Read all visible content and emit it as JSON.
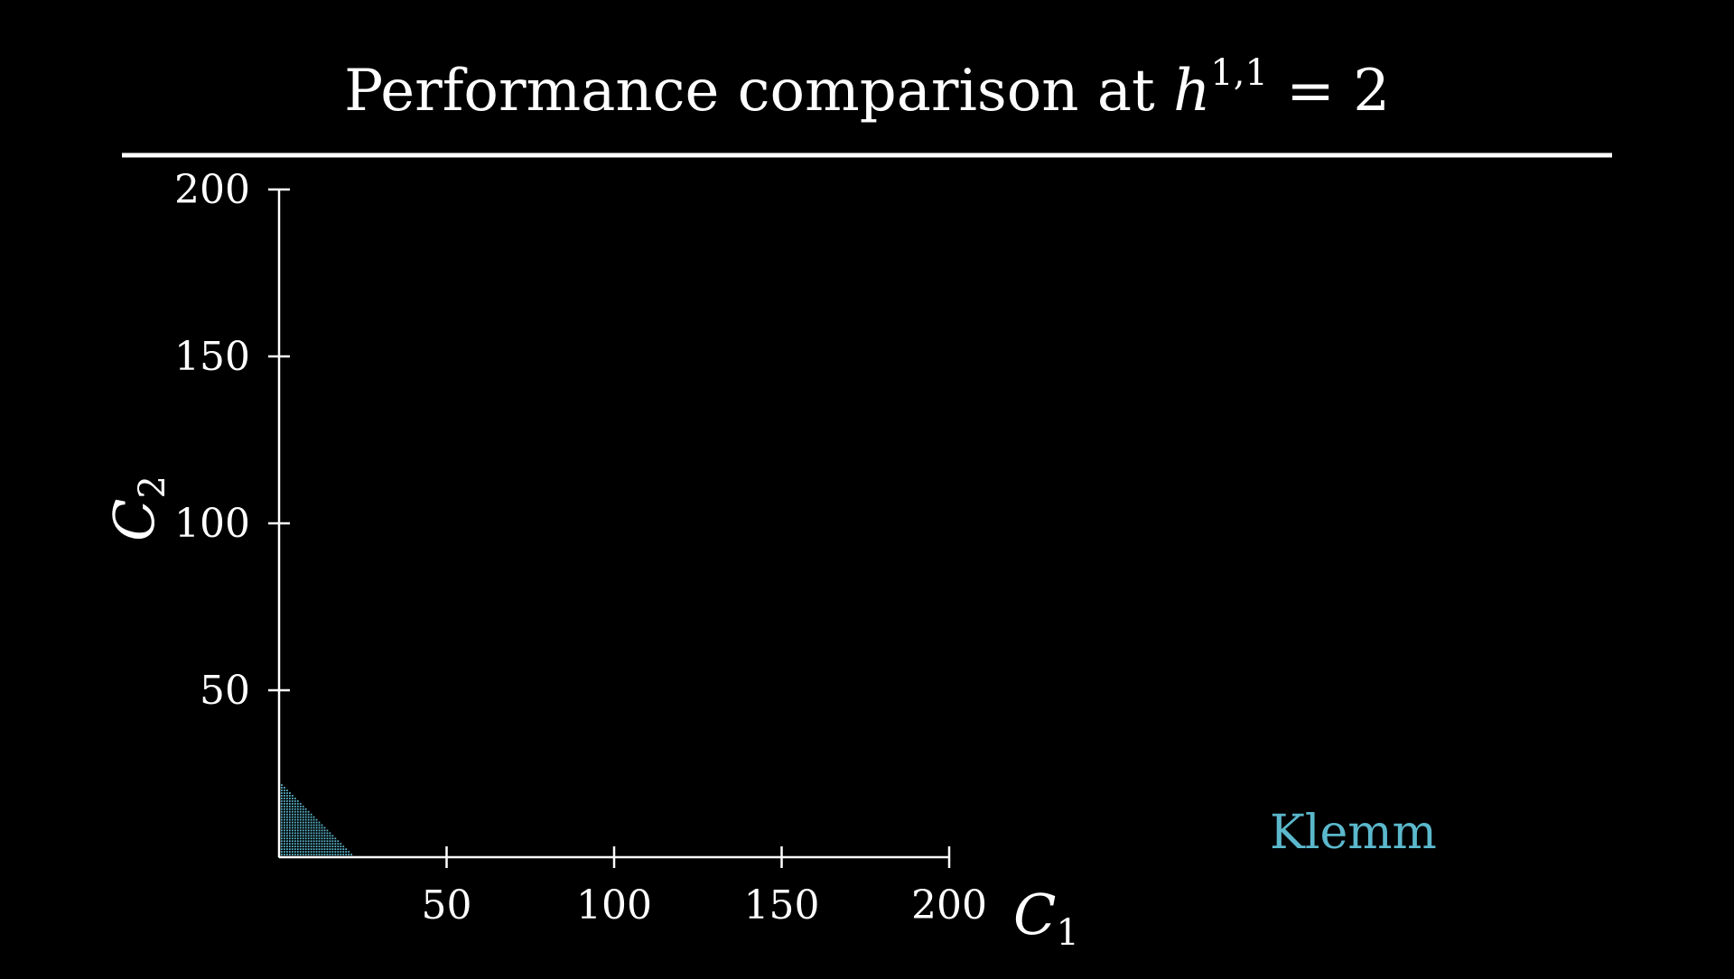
{
  "title": {
    "prefix": "Performance comparison at ",
    "math_var": "h",
    "math_sup": "1,1",
    "math_rest": " = 2"
  },
  "chart_data": {
    "type": "scatter",
    "title": "Performance comparison at h^{1,1} = 2",
    "xlabel": {
      "symbol": "C",
      "sub": "1"
    },
    "ylabel": {
      "symbol": "C",
      "sub": "2"
    },
    "xlim": [
      0,
      200
    ],
    "ylim": [
      0,
      200
    ],
    "xticks": [
      50,
      100,
      150,
      200
    ],
    "yticks": [
      50,
      100,
      150,
      200
    ],
    "grid": false,
    "series": [
      {
        "name": "Klemm",
        "color": "#5bb8cc",
        "region": "dense lattice of points filling the triangle c1 + c2 <= 23, c1 >= 0, c2 >= 0",
        "max_sum": 23
      }
    ],
    "legend": {
      "placement": "bottom-right"
    }
  },
  "colors": {
    "background": "#000000",
    "foreground": "#ffffff",
    "accent": "#5bb8cc"
  }
}
